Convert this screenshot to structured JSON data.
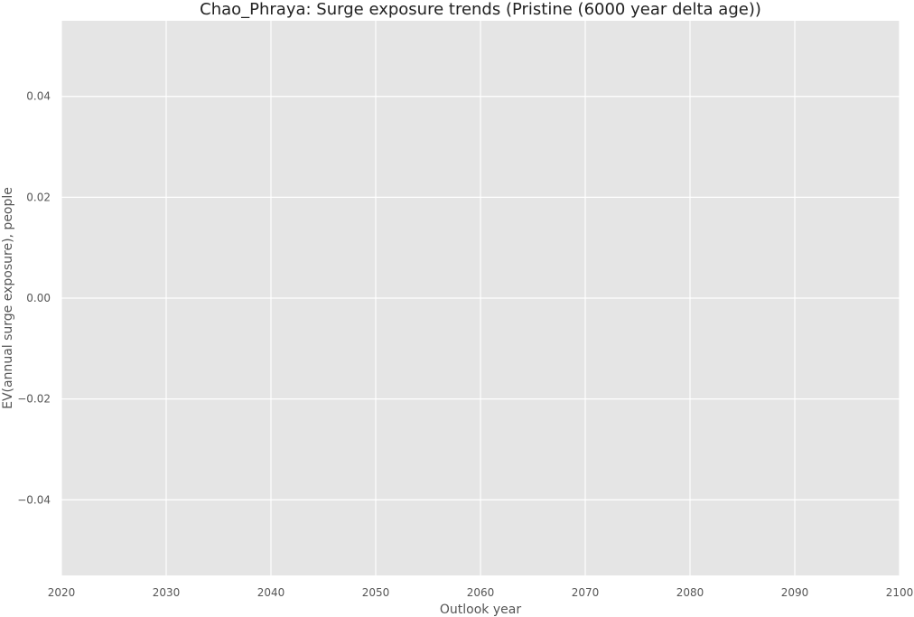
{
  "chart_data": {
    "type": "line",
    "title": "Chao_Phraya: Surge exposure trends (Pristine (6000 year delta age))",
    "xlabel": "Outlook year",
    "ylabel": "EV(annual surge exposure), people",
    "xlim": [
      2020,
      2100
    ],
    "ylim": [
      -0.055,
      0.055
    ],
    "xticks": [
      2020,
      2030,
      2040,
      2050,
      2060,
      2070,
      2080,
      2090,
      2100
    ],
    "xtick_labels": [
      "2020",
      "2030",
      "2040",
      "2050",
      "2060",
      "2070",
      "2080",
      "2090",
      "2100"
    ],
    "yticks": [
      -0.04,
      -0.02,
      0.0,
      0.02,
      0.04
    ],
    "ytick_labels": [
      "−0.04",
      "−0.02",
      "0.00",
      "0.02",
      "0.04"
    ],
    "grid": true,
    "series": [],
    "colors": {
      "plot_background": "#e5e5e5",
      "grid": "#ffffff",
      "text": "#555555",
      "title": "#222222"
    }
  }
}
